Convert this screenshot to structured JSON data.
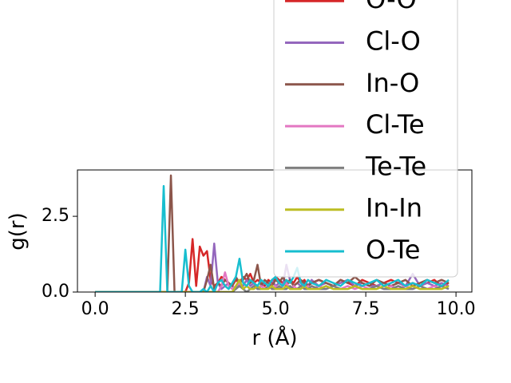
{
  "chart_data": {
    "type": "line",
    "x_label": "r (Å)",
    "y_label": "g(r)",
    "xlim": [
      -0.49,
      10.44
    ],
    "ylim": [
      0,
      4.03
    ],
    "xticks": [
      {
        "value": 0,
        "label": "0.0"
      },
      {
        "value": 2.5,
        "label": "2.5"
      },
      {
        "value": 5,
        "label": "5.0"
      },
      {
        "value": 7.5,
        "label": "7.5"
      },
      {
        "value": 10,
        "label": "10.0"
      }
    ],
    "yticks": [
      {
        "value": 0,
        "label": "0.0"
      },
      {
        "value": 2.5,
        "label": "2.5"
      }
    ],
    "legend": "upper right",
    "x": [
      0,
      1.8,
      1.9,
      2.0,
      2.1,
      2.2,
      2.3,
      2.4,
      2.5,
      2.6,
      2.7,
      2.8,
      2.9,
      3.0,
      3.1,
      3.2,
      3.3,
      3.4,
      3.5,
      3.6,
      3.7,
      3.8,
      3.9,
      4.0,
      4.1,
      4.2,
      4.3,
      4.4,
      4.5,
      4.6,
      4.7,
      4.8,
      4.9,
      5.0,
      5.1,
      5.2,
      5.3,
      5.4,
      5.5,
      5.6,
      5.7,
      5.8,
      5.9,
      6.0,
      6.2,
      6.4,
      6.6,
      6.8,
      7.0,
      7.2,
      7.4,
      7.6,
      7.8,
      8.0,
      8.2,
      8.4,
      8.6,
      8.8,
      9.0,
      9.2,
      9.4,
      9.6,
      9.8
    ],
    "series": [
      {
        "name": "O-O",
        "color": "#d62728",
        "values": [
          0,
          0,
          0,
          0,
          0,
          0,
          0,
          0,
          0,
          0.3,
          1.75,
          0.2,
          1.5,
          1.2,
          1.35,
          0.4,
          0.2,
          0.3,
          0.5,
          0.4,
          0.3,
          0.2,
          0.4,
          0.3,
          0.5,
          0.4,
          0.6,
          0.3,
          0.4,
          0.3,
          0.2,
          0.4,
          0.3,
          0.5,
          0.4,
          0.3,
          0.2,
          0.4,
          0.3,
          0.5,
          0.3,
          0.4,
          0.2,
          0.3,
          0.4,
          0.3,
          0.2,
          0.4,
          0.3,
          0.2,
          0.4,
          0.3,
          0.2,
          0.3,
          0.4,
          0.3,
          0.2,
          0.3,
          0.2,
          0.3,
          0.4,
          0.2,
          0.3
        ]
      },
      {
        "name": "Cl-O",
        "color": "#9467bd",
        "values": [
          0,
          0,
          0,
          0,
          0,
          0,
          0,
          0,
          0,
          0,
          0,
          0,
          0,
          0,
          0.5,
          0.2,
          1.6,
          0.3,
          0.1,
          0.2,
          0.3,
          0.2,
          0.1,
          0.3,
          0.2,
          0.4,
          0.2,
          0.3,
          0.1,
          0.2,
          0.3,
          0.2,
          0.4,
          0.2,
          0.3,
          0.2,
          0.9,
          0.4,
          0.2,
          0.3,
          0.2,
          0.3,
          0.2,
          0.4,
          0.2,
          0.3,
          0.2,
          0.3,
          0.4,
          0.2,
          0.3,
          0.2,
          0.2,
          0.3,
          0.2,
          0.3,
          0.2,
          0.6,
          0.2,
          0.3,
          0.2,
          0.3,
          0.2
        ]
      },
      {
        "name": "In-O",
        "color": "#8c564b",
        "values": [
          0,
          0,
          0,
          0,
          3.85,
          0,
          0,
          0,
          0,
          0,
          0,
          0,
          0,
          0,
          0.4,
          0.9,
          0.1,
          0.3,
          0.2,
          0.4,
          0.3,
          0.2,
          0.5,
          0.3,
          0.4,
          0.6,
          0.3,
          0.4,
          0.9,
          0.2,
          0.4,
          0.3,
          0.2,
          0.4,
          0.3,
          0.5,
          0.3,
          0.4,
          0.2,
          0.3,
          0.4,
          0.3,
          0.2,
          0.3,
          0.4,
          0.3,
          0.2,
          0.4,
          0.3,
          0.5,
          0.3,
          0.2,
          0.4,
          0.3,
          0.2,
          0.3,
          0.4,
          0.2,
          0.3,
          0.4,
          0.3,
          0.4,
          0.3
        ]
      },
      {
        "name": "Cl-Te",
        "color": "#e377c2",
        "values": [
          0,
          0,
          0,
          0,
          0,
          0,
          0,
          0,
          0,
          0,
          0,
          0,
          0,
          0,
          0,
          0,
          0,
          0,
          0.2,
          0.65,
          0.2,
          0.1,
          0.2,
          0.3,
          0.1,
          0.2,
          0.1,
          0.2,
          0.1,
          0.2,
          0.1,
          0.2,
          0.1,
          0.2,
          0.1,
          0.2,
          0.3,
          0.1,
          0.2,
          0.1,
          0.2,
          0.1,
          0.2,
          0.1,
          0.2,
          0.1,
          0.2,
          0.1,
          0.2,
          0.1,
          0.2,
          0.1,
          0.2,
          0.1,
          0.2,
          0.1,
          0.2,
          0.1,
          0.2,
          0.1,
          0.2,
          0.1,
          0.2
        ]
      },
      {
        "name": "Te-Te",
        "color": "#7f7f7f",
        "values": [
          0,
          0,
          0,
          0,
          0,
          0,
          0,
          0,
          0,
          0,
          0,
          0,
          0,
          0,
          0,
          0,
          0,
          0,
          0,
          0,
          0,
          0,
          0.1,
          0.2,
          0.1,
          0,
          0.1,
          0.2,
          0.1,
          0.1,
          0.1,
          0.2,
          0.1,
          0.1,
          0.2,
          0.1,
          0.1,
          0.2,
          0.1,
          0.1,
          0.2,
          0.1,
          0.1,
          0.2,
          0.1,
          0.1,
          0.2,
          0.1,
          0.1,
          0.2,
          0.1,
          0.1,
          0.2,
          0.1,
          0.1,
          0.2,
          0.1,
          0.1,
          0.2,
          0.1,
          0.1,
          0.2,
          0.1
        ]
      },
      {
        "name": "In-In",
        "color": "#bcbd22",
        "values": [
          0,
          0,
          0,
          0,
          0,
          0,
          0,
          0,
          0,
          0,
          0,
          0,
          0,
          0,
          0,
          0,
          0,
          0,
          0,
          0,
          0,
          0,
          0.2,
          0.4,
          0.1,
          0.2,
          0.1,
          0.1,
          0.2,
          0.1,
          0.1,
          0.1,
          0.2,
          0.1,
          0.1,
          0.1,
          0.2,
          0.1,
          0.1,
          0.1,
          0.1,
          0.2,
          0.1,
          0.1,
          0.1,
          0.2,
          0.1,
          0.1,
          0.1,
          0.2,
          0.1,
          0.1,
          0.1,
          0.2,
          0.1,
          0.1,
          0.1,
          0.2,
          0.1,
          0.1,
          0.1,
          0.1,
          0.2
        ]
      },
      {
        "name": "O-Te",
        "color": "#17becf",
        "values": [
          0,
          0,
          3.5,
          0,
          0,
          0,
          0,
          0,
          1.4,
          0.2,
          0,
          0,
          0,
          0.1,
          0,
          0.2,
          0,
          0.3,
          0.4,
          0.2,
          0.1,
          0.3,
          0.5,
          1.1,
          0.3,
          0.2,
          0.4,
          0.3,
          0.2,
          0.4,
          0.3,
          0.2,
          0.4,
          0.5,
          0.3,
          0.2,
          0.4,
          0.3,
          0.5,
          0.8,
          0.3,
          0.2,
          0.4,
          0.3,
          0.2,
          0.4,
          0.3,
          0.2,
          0.4,
          0.3,
          0.2,
          0.3,
          0.4,
          0.2,
          0.3,
          0.4,
          0.2,
          0.3,
          0.2,
          0.4,
          0.3,
          0.2,
          0.4
        ]
      }
    ]
  }
}
